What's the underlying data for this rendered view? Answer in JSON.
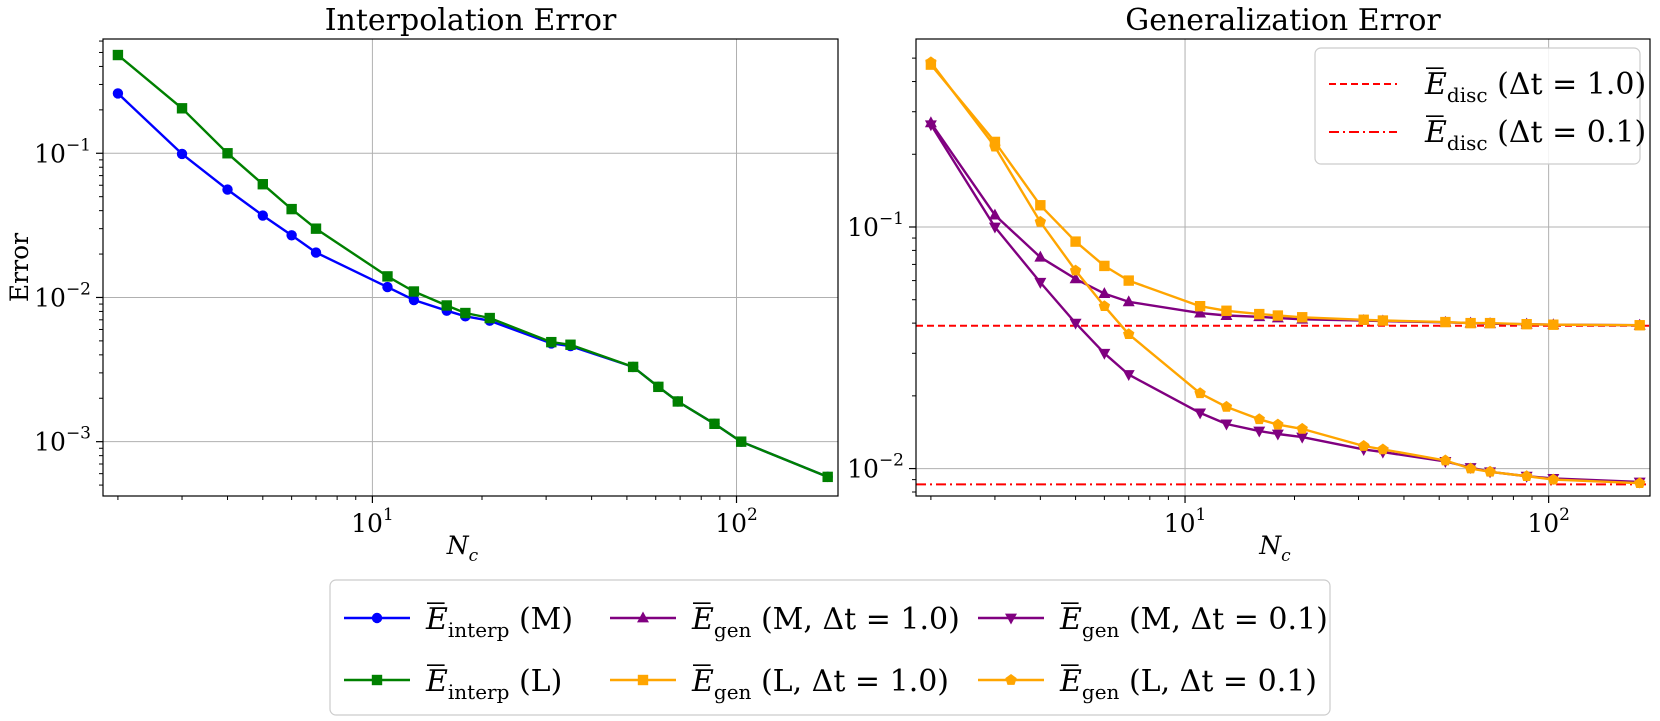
{
  "chart_data": [
    {
      "type": "line",
      "title": "Interpolation Error",
      "xlabel": "N",
      "xlabel_sub": "c",
      "ylabel": "Error",
      "xscale": "log",
      "yscale": "log",
      "xlim": [
        1.82,
        190
      ],
      "ylim": [
        0.00042,
        0.62
      ],
      "grid": true,
      "xticks": [
        {
          "value": 10,
          "base": "10",
          "exp": "1"
        },
        {
          "value": 100,
          "base": "10",
          "exp": "2"
        }
      ],
      "yticks": [
        {
          "value": 0.1,
          "base": "10",
          "exp": "−1"
        },
        {
          "value": 0.01,
          "base": "10",
          "exp": "−2"
        },
        {
          "value": 0.001,
          "base": "10",
          "exp": "−3"
        }
      ],
      "series": [
        {
          "name": "E_interp (M)",
          "color": "#0000ff",
          "marker": "circle",
          "x": [
            2,
            3,
            4,
            5,
            6,
            7,
            11,
            13,
            16,
            18,
            21,
            31,
            35,
            52,
            61,
            69,
            87,
            103,
            178
          ],
          "y": [
            0.26,
            0.099,
            0.056,
            0.037,
            0.027,
            0.0205,
            0.0118,
            0.0096,
            0.0081,
            0.0074,
            0.0069,
            0.0048,
            0.0046,
            0.0033,
            0.0024,
            0.0019,
            0.00133,
            0.001,
            0.00057
          ]
        },
        {
          "name": "E_interp (L)",
          "color": "#008000",
          "marker": "square",
          "x": [
            2,
            3,
            4,
            5,
            6,
            7,
            11,
            13,
            16,
            18,
            21,
            31,
            35,
            52,
            61,
            69,
            87,
            103,
            178
          ],
          "y": [
            0.48,
            0.205,
            0.1,
            0.061,
            0.041,
            0.03,
            0.014,
            0.011,
            0.0088,
            0.0078,
            0.0072,
            0.0049,
            0.0047,
            0.0033,
            0.0024,
            0.0019,
            0.00133,
            0.001,
            0.00057
          ]
        }
      ]
    },
    {
      "type": "line",
      "title": "Generalization Error",
      "xlabel": "N",
      "xlabel_sub": "c",
      "ylabel": "",
      "xscale": "log",
      "yscale": "log",
      "xlim": [
        1.82,
        190
      ],
      "ylim": [
        0.0077,
        0.6
      ],
      "grid": true,
      "xticks": [
        {
          "value": 10,
          "base": "10",
          "exp": "1"
        },
        {
          "value": 100,
          "base": "10",
          "exp": "2"
        }
      ],
      "yticks": [
        {
          "value": 0.1,
          "base": "10",
          "exp": "−1"
        },
        {
          "value": 0.01,
          "base": "10",
          "exp": "−2"
        }
      ],
      "hlines": [
        {
          "name": "E_disc (Δt = 1.0)",
          "y": 0.039,
          "color": "#ff0000",
          "style": "dashed"
        },
        {
          "name": "E_disc (Δt = 0.1)",
          "y": 0.0086,
          "color": "#ff0000",
          "style": "dashdot"
        }
      ],
      "series": [
        {
          "name": "E_gen (M, Δt = 1.0)",
          "color": "#800080",
          "marker": "triangle-up",
          "x": [
            2,
            3,
            4,
            5,
            6,
            7,
            11,
            13,
            16,
            18,
            21,
            31,
            35,
            52,
            61,
            69,
            87,
            103,
            178
          ],
          "y": [
            0.27,
            0.112,
            0.075,
            0.061,
            0.053,
            0.049,
            0.044,
            0.043,
            0.0425,
            0.042,
            0.0415,
            0.041,
            0.0408,
            0.0403,
            0.04,
            0.0398,
            0.0396,
            0.0394,
            0.0392
          ]
        },
        {
          "name": "E_gen (M, Δt = 0.1)",
          "color": "#800080",
          "marker": "triangle-down",
          "x": [
            2,
            3,
            4,
            5,
            6,
            7,
            11,
            13,
            16,
            18,
            21,
            31,
            35,
            52,
            61,
            69,
            87,
            103,
            178
          ],
          "y": [
            0.265,
            0.1,
            0.059,
            0.04,
            0.03,
            0.0245,
            0.017,
            0.0153,
            0.0143,
            0.0139,
            0.0135,
            0.012,
            0.0117,
            0.0107,
            0.0101,
            0.0097,
            0.0093,
            0.0091,
            0.0088
          ]
        },
        {
          "name": "E_gen (L, Δt = 1.0)",
          "color": "#ffa500",
          "marker": "square",
          "x": [
            2,
            3,
            4,
            5,
            6,
            7,
            11,
            13,
            16,
            18,
            21,
            31,
            35,
            52,
            61,
            69,
            87,
            103,
            178
          ],
          "y": [
            0.47,
            0.225,
            0.123,
            0.087,
            0.069,
            0.06,
            0.047,
            0.045,
            0.0436,
            0.043,
            0.0423,
            0.0413,
            0.041,
            0.0404,
            0.04,
            0.04,
            0.0396,
            0.0394,
            0.0392
          ]
        },
        {
          "name": "E_gen (L, Δt = 0.1)",
          "color": "#ffa500",
          "marker": "pentagon",
          "x": [
            2,
            3,
            4,
            5,
            6,
            7,
            11,
            13,
            16,
            18,
            21,
            31,
            35,
            52,
            61,
            69,
            87,
            103,
            178
          ],
          "y": [
            0.48,
            0.215,
            0.105,
            0.066,
            0.047,
            0.036,
            0.0205,
            0.018,
            0.016,
            0.0152,
            0.0146,
            0.0124,
            0.012,
            0.0108,
            0.01,
            0.0097,
            0.0093,
            0.009,
            0.0087
          ]
        }
      ],
      "legend_position": "upper-right"
    }
  ],
  "legend": {
    "position": "bottom-center",
    "entries": [
      {
        "symbol": "E",
        "sub": "interp",
        "label": "(M)",
        "color": "#0000ff",
        "marker": "circle",
        "line": "solid"
      },
      {
        "symbol": "E",
        "sub": "interp",
        "label": "(L)",
        "color": "#008000",
        "marker": "square",
        "line": "solid"
      },
      {
        "symbol": "E",
        "sub": "gen",
        "label": "(M, Δt = 1.0)",
        "color": "#800080",
        "marker": "triangle-up",
        "line": "solid"
      },
      {
        "symbol": "E",
        "sub": "gen",
        "label": "(L, Δt = 1.0)",
        "color": "#ffa500",
        "marker": "square",
        "line": "solid"
      },
      {
        "symbol": "E",
        "sub": "gen",
        "label": "(M, Δt = 0.1)",
        "color": "#800080",
        "marker": "triangle-down",
        "line": "solid"
      },
      {
        "symbol": "E",
        "sub": "gen",
        "label": "(L, Δt = 0.1)",
        "color": "#ffa500",
        "marker": "pentagon",
        "line": "solid"
      }
    ]
  },
  "inset_legend": {
    "entries": [
      {
        "symbol": "E",
        "sub": "disc",
        "label": "(Δt = 1.0)",
        "color": "#ff0000",
        "line": "dashed"
      },
      {
        "symbol": "E",
        "sub": "disc",
        "label": "(Δt = 0.1)",
        "color": "#ff0000",
        "line": "dashdot"
      }
    ]
  }
}
